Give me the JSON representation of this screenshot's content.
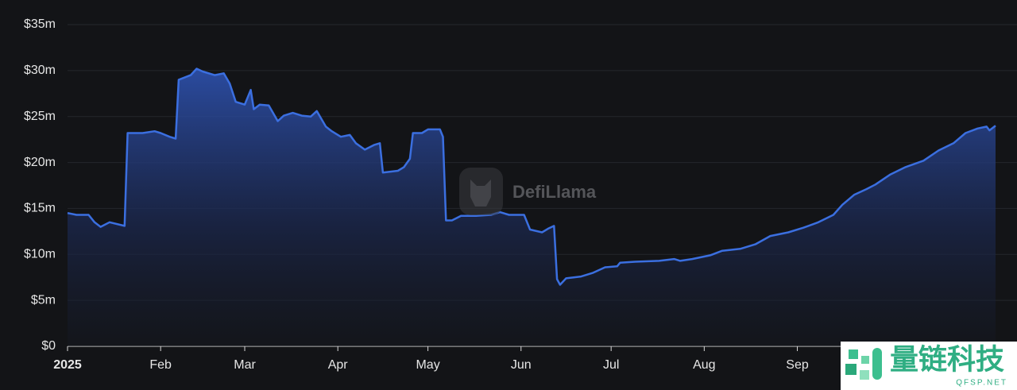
{
  "chart_data": {
    "type": "area",
    "watermark": "DefiLlama",
    "overlay_watermark": {
      "title": "量链科技",
      "subtitle": "QFSP.NET"
    },
    "color": "#3b6fe0",
    "x": [
      0,
      3,
      7,
      9,
      11,
      14,
      19,
      20,
      25,
      29,
      31,
      34,
      36,
      37,
      41,
      43,
      45,
      49,
      52,
      54,
      56,
      59,
      61,
      62,
      64,
      67,
      70,
      72,
      75,
      78,
      81,
      83,
      86,
      88,
      91,
      94,
      96,
      99,
      102,
      104,
      105,
      110,
      112,
      114,
      115,
      118,
      120,
      124,
      125,
      126,
      128,
      131,
      136,
      141,
      144,
      147,
      152,
      154,
      158,
      160,
      162,
      163,
      164,
      166,
      171,
      175,
      179,
      183,
      184,
      189,
      197,
      202,
      204,
      208,
      214,
      218,
      224,
      229,
      234,
      240,
      245,
      250,
      255,
      258,
      262,
      266,
      269,
      274,
      279,
      285,
      290,
      295,
      299,
      303,
      306,
      307,
      309
    ],
    "values": [
      14.5,
      14.3,
      14.3,
      13.5,
      13.0,
      13.5,
      13.1,
      23.2,
      23.2,
      23.4,
      23.2,
      22.8,
      22.6,
      29.0,
      29.5,
      30.2,
      29.9,
      29.5,
      29.7,
      28.6,
      26.6,
      26.3,
      27.9,
      25.8,
      26.3,
      26.2,
      24.5,
      25.1,
      25.4,
      25.1,
      25.0,
      25.6,
      23.9,
      23.4,
      22.8,
      23.0,
      22.1,
      21.4,
      21.9,
      22.1,
      18.9,
      19.1,
      19.5,
      20.4,
      23.2,
      23.2,
      23.6,
      23.6,
      22.8,
      13.7,
      13.7,
      14.2,
      14.2,
      14.3,
      14.6,
      14.3,
      14.3,
      12.7,
      12.4,
      12.8,
      13.1,
      7.3,
      6.7,
      7.4,
      7.6,
      8.0,
      8.6,
      8.7,
      9.1,
      9.2,
      9.3,
      9.5,
      9.3,
      9.5,
      9.9,
      10.4,
      10.6,
      11.1,
      12.0,
      12.4,
      12.9,
      13.5,
      14.3,
      15.4,
      16.5,
      17.1,
      17.6,
      18.7,
      19.5,
      20.2,
      21.3,
      22.1,
      23.2,
      23.7,
      23.9,
      23.5,
      24.0
    ],
    "xlim": [
      0,
      309
    ],
    "xticks": [
      {
        "value": 0,
        "label": "2025"
      },
      {
        "value": 31,
        "label": "Feb"
      },
      {
        "value": 59,
        "label": "Mar"
      },
      {
        "value": 90,
        "label": "Apr"
      },
      {
        "value": 120,
        "label": "May"
      },
      {
        "value": 151,
        "label": "Jun"
      },
      {
        "value": 181,
        "label": "Jul"
      },
      {
        "value": 212,
        "label": "Aug"
      },
      {
        "value": 243,
        "label": "Sep"
      }
    ],
    "ylim": [
      0,
      35
    ],
    "yticks": [
      {
        "value": 0,
        "label": "$0"
      },
      {
        "value": 5,
        "label": "$5m"
      },
      {
        "value": 10,
        "label": "$10m"
      },
      {
        "value": 15,
        "label": "$15m"
      },
      {
        "value": 20,
        "label": "$20m"
      },
      {
        "value": 25,
        "label": "$25m"
      },
      {
        "value": 30,
        "label": "$30m"
      },
      {
        "value": 35,
        "label": "$35m"
      }
    ],
    "grid": true
  }
}
